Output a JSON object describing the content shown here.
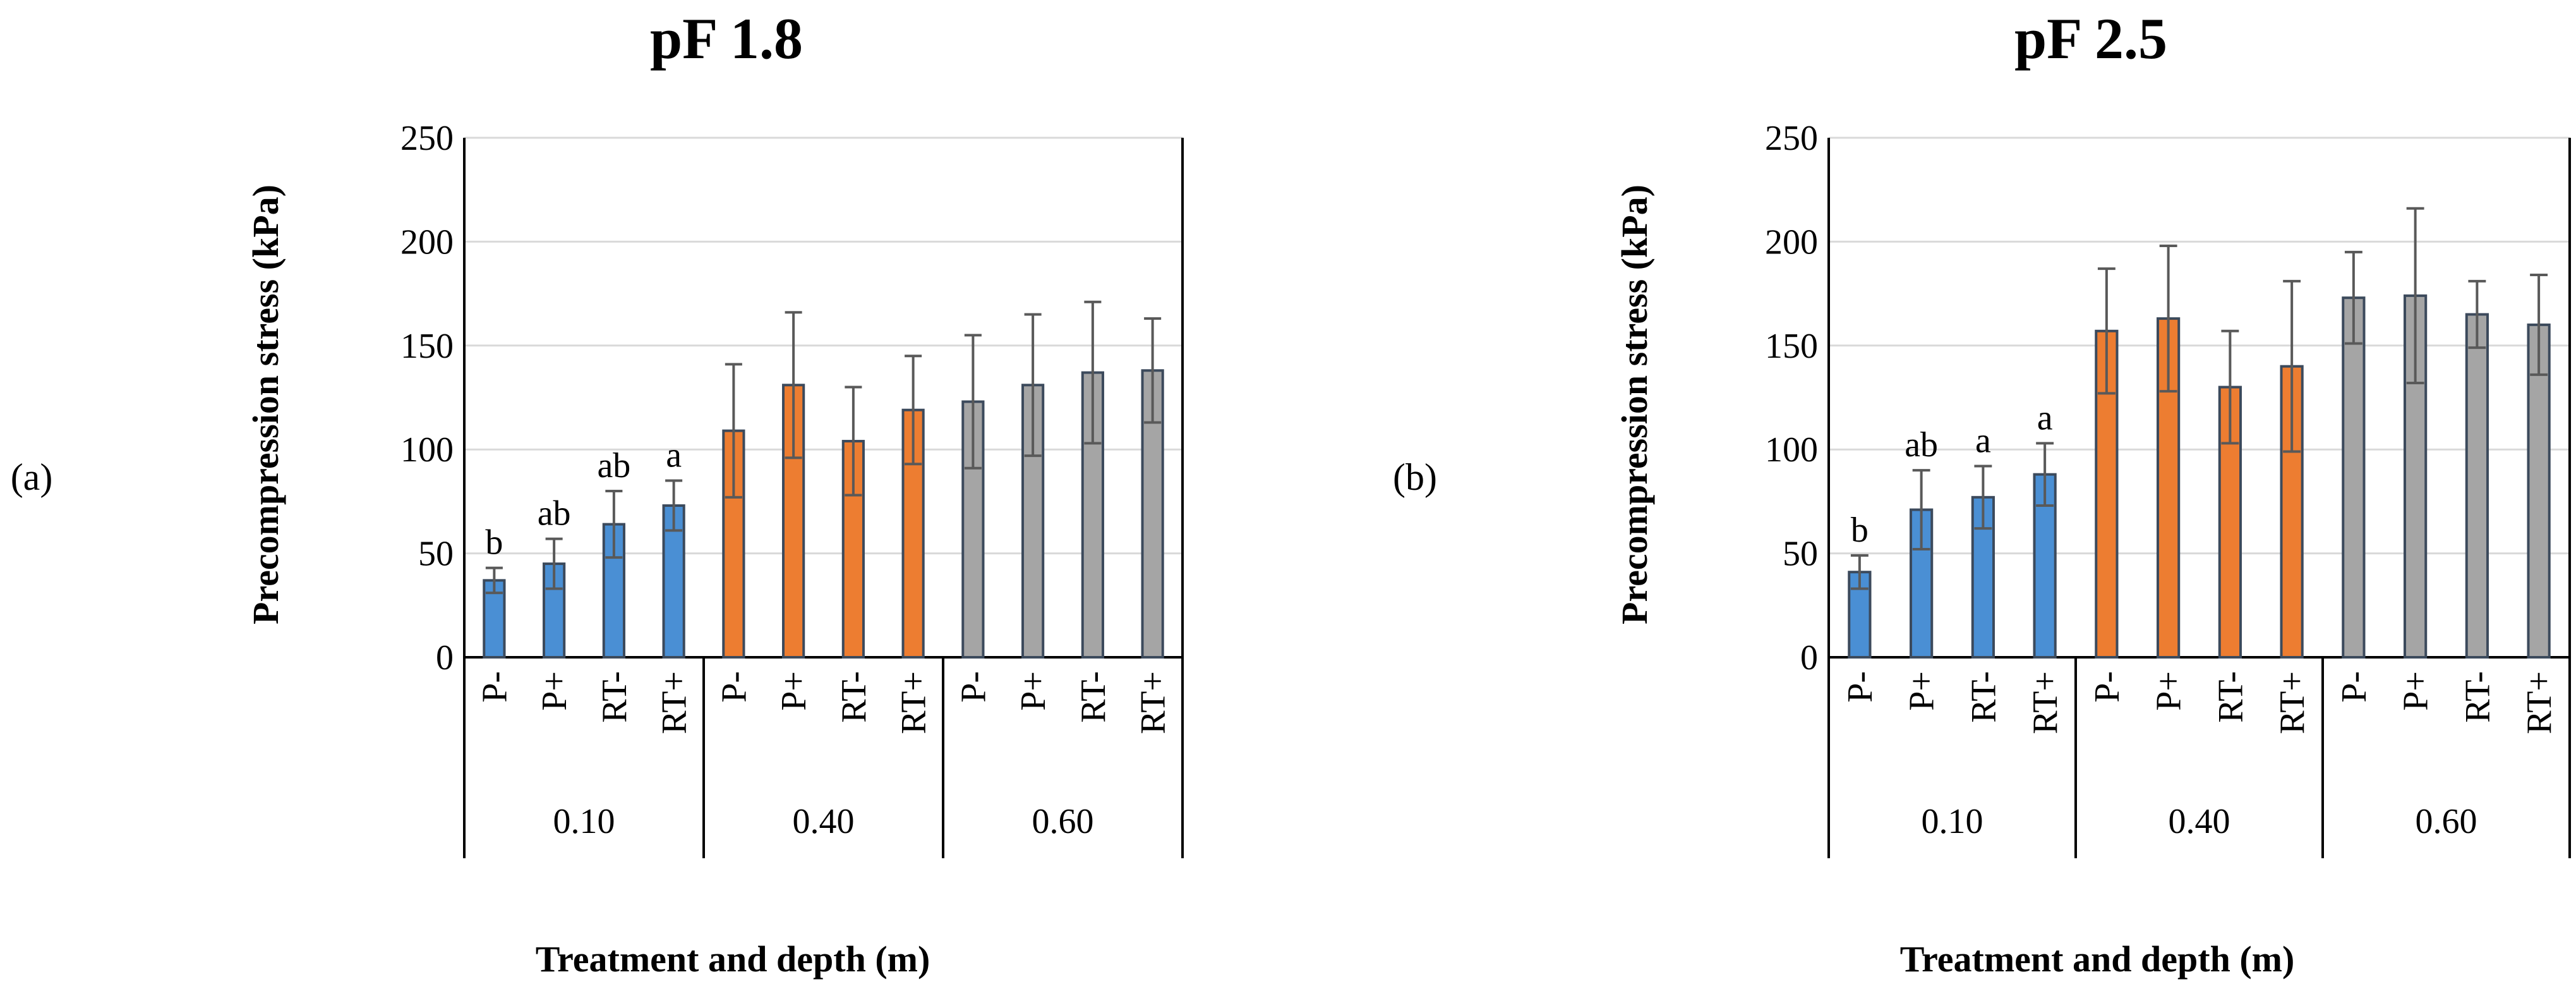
{
  "colors": {
    "group_0_10": "#4a8fd4",
    "group_0_40": "#ed7d31",
    "group_0_60": "#a5a5a5",
    "bar_edge": "#3c4a5c",
    "error_bar": "#595959"
  },
  "chart_data": [
    {
      "type": "bar",
      "panel_label": "(a)",
      "title": "pF 1.8",
      "xlabel": "Treatment and depth (m)",
      "ylabel": "Precompression stress (kPa)",
      "ylim": [
        0,
        250
      ],
      "yticks": [
        "0",
        "50",
        "100",
        "150",
        "200",
        "250"
      ],
      "grid": true,
      "categories": [
        "P-",
        "P+",
        "RT-",
        "RT+",
        "P-",
        "P+",
        "RT-",
        "RT+",
        "P-",
        "P+",
        "RT-",
        "RT+"
      ],
      "groups": [
        "0.10",
        "0.40",
        "0.60"
      ],
      "values": [
        37,
        45,
        64,
        73,
        109,
        131,
        104,
        119,
        123,
        131,
        137,
        138
      ],
      "errors": [
        6,
        12,
        16,
        12,
        32,
        35,
        26,
        26,
        32,
        34,
        34,
        25
      ],
      "significance": [
        "b",
        "ab",
        "ab",
        "a",
        "",
        "",
        "",
        "",
        "",
        "",
        "",
        ""
      ]
    },
    {
      "type": "bar",
      "panel_label": "(b)",
      "title": "pF 2.5",
      "xlabel": "Treatment and depth (m)",
      "ylabel": "Precompression stress (kPa)",
      "ylim": [
        0,
        250
      ],
      "yticks": [
        "0",
        "50",
        "100",
        "150",
        "200",
        "250"
      ],
      "grid": true,
      "categories": [
        "P-",
        "P+",
        "RT-",
        "RT+",
        "P-",
        "P+",
        "RT-",
        "RT+",
        "P-",
        "P+",
        "RT-",
        "RT+"
      ],
      "groups": [
        "0.10",
        "0.40",
        "0.60"
      ],
      "values": [
        41,
        71,
        77,
        88,
        157,
        163,
        130,
        140,
        173,
        174,
        165,
        160
      ],
      "errors": [
        8,
        19,
        15,
        15,
        30,
        35,
        27,
        41,
        22,
        42,
        16,
        24
      ],
      "significance": [
        "b",
        "ab",
        "a",
        "a",
        "",
        "",
        "",
        "",
        "",
        "",
        "",
        ""
      ]
    }
  ]
}
